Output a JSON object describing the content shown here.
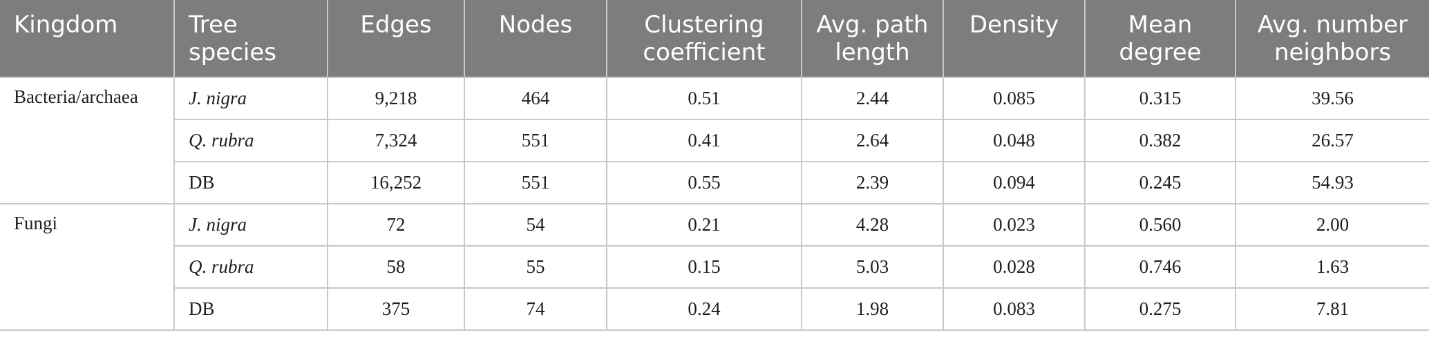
{
  "headers": [
    "Kingdom",
    "Tree species",
    "Edges",
    "Nodes",
    "Clustering coefficient",
    "Avg. path length",
    "Density",
    "Mean degree",
    "Avg. number neighbors"
  ],
  "groups": [
    {
      "kingdom": "Bacteria/archaea",
      "rows": [
        {
          "species": "J. nigra",
          "italic": true,
          "edges": "9,218",
          "nodes": "464",
          "clustering": "0.51",
          "path": "2.44",
          "density": "0.085",
          "mean_degree": "0.315",
          "neighbors": "39.56"
        },
        {
          "species": "Q. rubra",
          "italic": true,
          "edges": "7,324",
          "nodes": "551",
          "clustering": "0.41",
          "path": "2.64",
          "density": "0.048",
          "mean_degree": "0.382",
          "neighbors": "26.57"
        },
        {
          "species": "DB",
          "italic": false,
          "edges": "16,252",
          "nodes": "551",
          "clustering": "0.55",
          "path": "2.39",
          "density": "0.094",
          "mean_degree": "0.245",
          "neighbors": "54.93"
        }
      ]
    },
    {
      "kingdom": "Fungi",
      "rows": [
        {
          "species": "J. nigra",
          "italic": true,
          "edges": "72",
          "nodes": "54",
          "clustering": "0.21",
          "path": "4.28",
          "density": "0.023",
          "mean_degree": "0.560",
          "neighbors": "2.00"
        },
        {
          "species": "Q. rubra",
          "italic": true,
          "edges": "58",
          "nodes": "55",
          "clustering": "0.15",
          "path": "5.03",
          "density": "0.028",
          "mean_degree": "0.746",
          "neighbors": "1.63"
        },
        {
          "species": "DB",
          "italic": false,
          "edges": "375",
          "nodes": "74",
          "clustering": "0.24",
          "path": "1.98",
          "density": "0.083",
          "mean_degree": "0.275",
          "neighbors": "7.81"
        }
      ]
    }
  ]
}
